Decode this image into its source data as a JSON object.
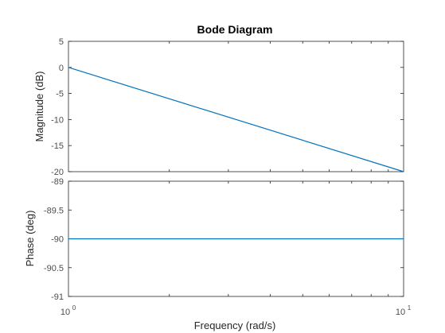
{
  "chart_data": {
    "type": "line",
    "title": "Bode Diagram",
    "xlabel": "Frequency  (rad/s)",
    "x_scale": "log",
    "xlim": [
      1,
      10
    ],
    "x_tick_labels": [
      {
        "base": "10",
        "exp": "0"
      },
      {
        "base": "10",
        "exp": "1"
      }
    ],
    "grid": false,
    "line_color": "#0072BD",
    "panels": [
      {
        "name": "magnitude",
        "ylabel": "Magnitude (dB)",
        "ylim": [
          -20,
          5
        ],
        "yticks": [
          "5",
          "0",
          "-5",
          "-10",
          "-15",
          "-20"
        ],
        "ytick_values": [
          5,
          0,
          -5,
          -10,
          -15,
          -20
        ],
        "series": [
          {
            "x": [
              1,
              10
            ],
            "y": [
              0,
              -20
            ]
          }
        ]
      },
      {
        "name": "phase",
        "ylabel": "Phase (deg)",
        "ylim": [
          -91,
          -89
        ],
        "yticks": [
          "-89",
          "-89.5",
          "-90",
          "-90.5",
          "-91"
        ],
        "ytick_values": [
          -89,
          -89.5,
          -90,
          -90.5,
          -91
        ],
        "series": [
          {
            "x": [
              1,
              10
            ],
            "y": [
              -90,
              -90
            ]
          }
        ]
      }
    ]
  }
}
